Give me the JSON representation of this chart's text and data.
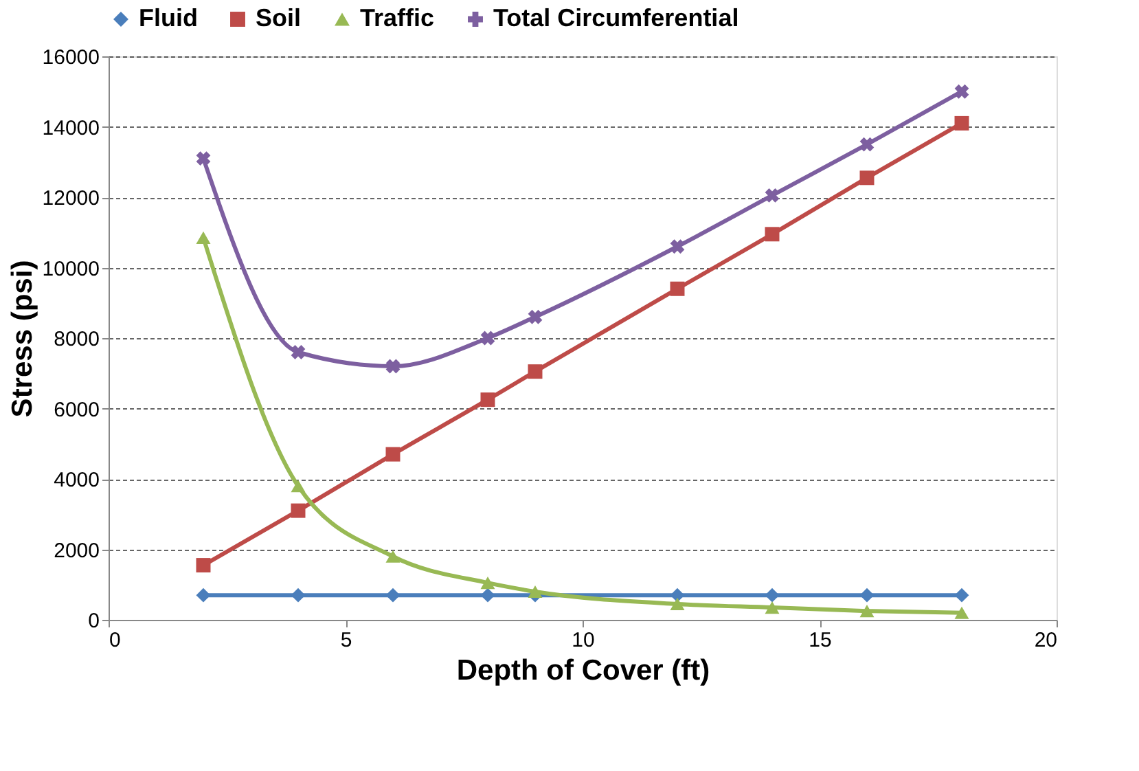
{
  "chart_data": {
    "type": "line",
    "xlabel": "Depth of Cover (ft)",
    "ylabel": "Stress (psi)",
    "x": [
      2,
      4,
      6,
      8,
      9,
      12,
      14,
      16,
      18
    ],
    "xlim": [
      0,
      20
    ],
    "xticks": [
      0,
      5,
      10,
      15,
      20
    ],
    "ylim": [
      0,
      16000
    ],
    "yticks": [
      0,
      2000,
      4000,
      6000,
      8000,
      10000,
      12000,
      14000,
      16000
    ],
    "grid": "y",
    "legend": "top",
    "line_style": "solid",
    "series": [
      {
        "name": "Fluid",
        "color": "#4a7ebb",
        "marker": "diamond",
        "values": [
          700,
          700,
          700,
          700,
          700,
          700,
          700,
          700,
          700
        ]
      },
      {
        "name": "Soil",
        "color": "#be4b48",
        "marker": "square",
        "values": [
          1550,
          3100,
          4700,
          6250,
          7050,
          9400,
          10950,
          12550,
          14100
        ]
      },
      {
        "name": "Traffic",
        "color": "#98b954",
        "marker": "triangle",
        "values": [
          10850,
          3800,
          1800,
          1050,
          800,
          450,
          350,
          250,
          200
        ]
      },
      {
        "name": "Total Circumferential",
        "color": "#7d5fa0",
        "marker": "cross",
        "values": [
          13100,
          7600,
          7200,
          8000,
          8600,
          10600,
          12050,
          13500,
          15000
        ]
      }
    ]
  }
}
